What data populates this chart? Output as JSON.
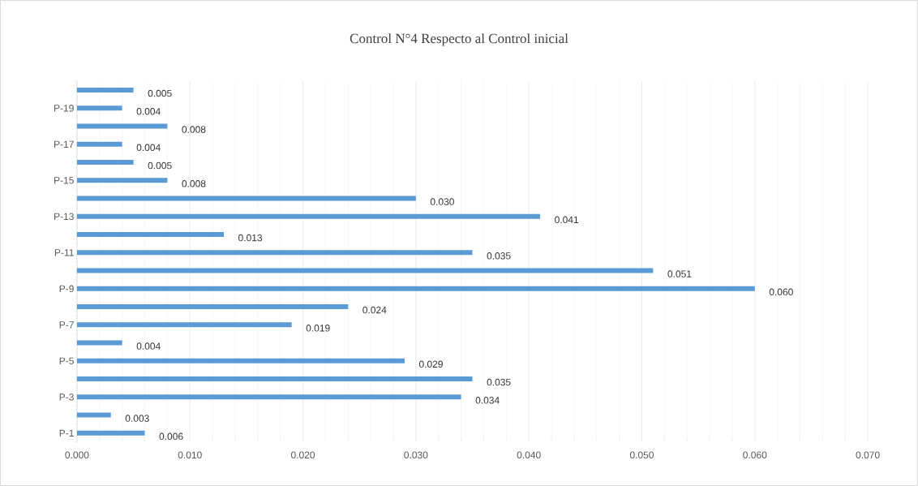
{
  "chart_data": {
    "type": "bar",
    "orientation": "horizontal",
    "title": "Control N°4 Respecto al Control inicial",
    "categories": [
      null,
      "P-19",
      null,
      "P-17",
      null,
      "P-15",
      null,
      "P-13",
      null,
      "P-11",
      null,
      "P-9",
      null,
      "P-7",
      null,
      "P-5",
      null,
      "P-3",
      null,
      "P-1"
    ],
    "values": [
      0.005,
      0.004,
      0.008,
      0.004,
      0.005,
      0.008,
      0.03,
      0.041,
      0.013,
      0.035,
      0.051,
      0.06,
      0.024,
      0.019,
      0.004,
      0.029,
      0.035,
      0.034,
      0.003,
      0.006
    ],
    "color": "#5b9bd5",
    "xlim": [
      0,
      0.07
    ],
    "xticks": [
      {
        "value": 0,
        "label": "0.000"
      },
      {
        "value": 0.01,
        "label": "0.010"
      },
      {
        "value": 0.02,
        "label": "0.020"
      },
      {
        "value": 0.03,
        "label": "0.030"
      },
      {
        "value": 0.04,
        "label": "0.040"
      },
      {
        "value": 0.05,
        "label": "0.050"
      },
      {
        "value": 0.06,
        "label": "0.060"
      },
      {
        "value": 0.07,
        "label": "0.070"
      }
    ],
    "value_labels": [
      "0.005",
      "0.004",
      "0.008",
      "0.004",
      "0.005",
      "0.008",
      "0.030",
      "0.041",
      "0.013",
      "0.035",
      "0.051",
      "0.060",
      "0.024",
      "0.019",
      "0.004",
      "0.029",
      "0.035",
      "0.034",
      "0.003",
      "0.006"
    ],
    "grid": "x"
  }
}
